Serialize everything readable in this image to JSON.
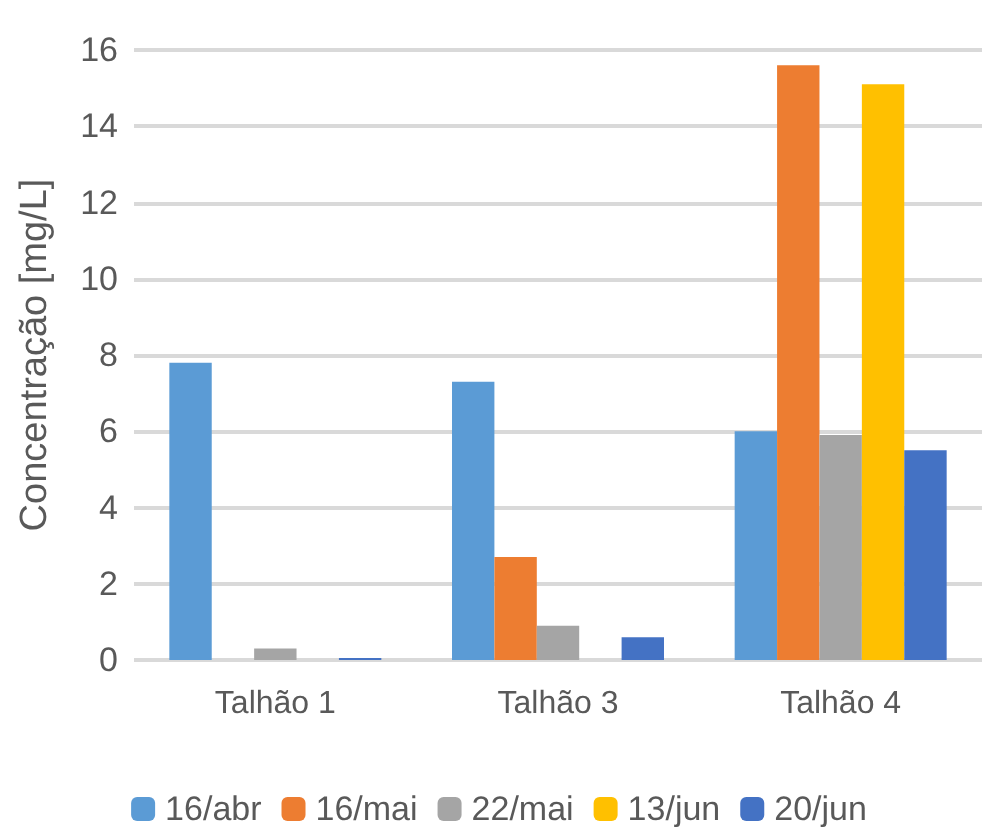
{
  "chart_data": {
    "type": "bar",
    "ylabel": "Concentração [mg/L]",
    "categories": [
      "Talhão 1",
      "Talhão 3",
      "Talhão 4"
    ],
    "series": [
      {
        "name": "16/abr",
        "color": "#5b9bd5",
        "values": [
          7.8,
          7.3,
          6.0
        ]
      },
      {
        "name": "16/mai",
        "color": "#ed7d31",
        "values": [
          0,
          2.7,
          15.6
        ]
      },
      {
        "name": "22/mai",
        "color": "#a5a5a5",
        "values": [
          0.3,
          0.9,
          5.9
        ]
      },
      {
        "name": "13/jun",
        "color": "#ffc000",
        "values": [
          0,
          0,
          15.1
        ]
      },
      {
        "name": "20/jun",
        "color": "#4472c4",
        "values": [
          0.05,
          0.6,
          5.5
        ]
      }
    ],
    "ylim": [
      0,
      16
    ],
    "yticks": [
      0,
      2,
      4,
      6,
      8,
      10,
      12,
      14,
      16
    ],
    "grid": "y",
    "legend": "bottom"
  }
}
